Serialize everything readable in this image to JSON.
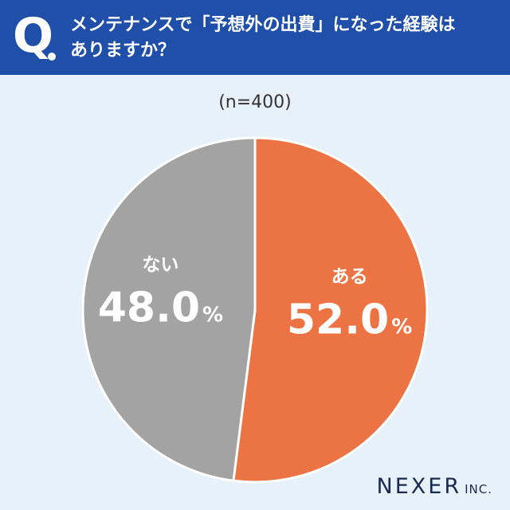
{
  "header": {
    "q_letter": "Q",
    "question_line1": "メンテナンスで「予想外の出費」になった経験は",
    "question_line2": "ありますか？"
  },
  "sample_label": "(n=400)",
  "chart_data": {
    "type": "pie",
    "title": "メンテナンスで「予想外の出費」になった経験はありますか？",
    "n": 400,
    "slices": [
      {
        "label": "ある",
        "value": 52.0,
        "display": "52.0",
        "unit": "%",
        "color": "#ec7444"
      },
      {
        "label": "ない",
        "value": 48.0,
        "display": "48.0",
        "unit": "%",
        "color": "#a3a3a3"
      }
    ],
    "start": "12 o'clock",
    "direction": "clockwise",
    "legend": "none"
  },
  "brand": {
    "name": "NEXER",
    "suffix": "INC."
  }
}
